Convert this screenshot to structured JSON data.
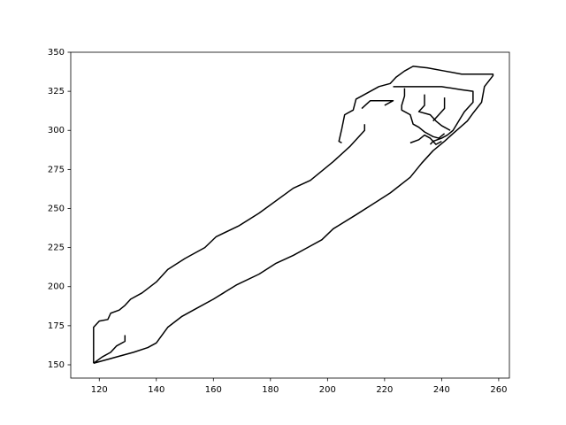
{
  "chart_data": {
    "type": "line",
    "xlim": [
      110,
      263.75
    ],
    "ylim": [
      141.5,
      350
    ],
    "xticks": [
      120,
      140,
      160,
      180,
      200,
      220,
      240,
      260
    ],
    "yticks": [
      150,
      175,
      200,
      225,
      250,
      275,
      300,
      325,
      350
    ],
    "series": [
      {
        "color": "#000000",
        "x": [
          118,
          132,
          137,
          140,
          144,
          149,
          154,
          160,
          168,
          176,
          182,
          188,
          193,
          198,
          202,
          210,
          216,
          222,
          229,
          233,
          237,
          241,
          244,
          249,
          251,
          254,
          255,
          258,
          258,
          247,
          241,
          235,
          230,
          227,
          224,
          222,
          218,
          212,
          210,
          209,
          206,
          205,
          204,
          205,
          null,
          118,
          118,
          120,
          123,
          124,
          127,
          129,
          131,
          135,
          140,
          144,
          150,
          157,
          161,
          169,
          176,
          188,
          194,
          202,
          208,
          213,
          213,
          null,
          118,
          121,
          124,
          126,
          129,
          129,
          null,
          212,
          215,
          223,
          220,
          null,
          223,
          240,
          247,
          251,
          251,
          248,
          246,
          244,
          242,
          240,
          237,
          236,
          null,
          227,
          227,
          226,
          226,
          229,
          230,
          232,
          234,
          237,
          239,
          241,
          null,
          234,
          234,
          232,
          236,
          238,
          240,
          243,
          null,
          241,
          241,
          239,
          237,
          null,
          229,
          232,
          234,
          236,
          238,
          240
        ],
        "values": [
          151,
          158,
          161,
          164,
          174,
          181,
          186,
          192,
          201,
          208,
          215,
          220,
          225,
          230,
          237,
          246,
          253,
          260,
          270,
          279,
          287,
          293,
          298,
          306,
          311,
          318,
          328,
          335,
          336,
          336,
          338,
          340,
          341,
          338,
          334,
          330,
          328,
          322,
          320,
          313,
          310,
          301,
          293,
          292,
          null,
          151,
          174,
          178,
          179,
          183,
          185,
          188,
          192,
          196,
          203,
          211,
          218,
          225,
          232,
          239,
          247,
          263,
          268,
          280,
          290,
          300,
          304,
          null,
          151,
          155,
          158,
          162,
          165,
          169,
          null,
          314,
          319,
          319,
          316,
          null,
          328,
          328,
          326,
          325,
          318,
          312,
          306,
          300,
          297,
          295,
          293,
          291,
          null,
          327,
          322,
          316,
          313,
          310,
          304,
          302,
          299,
          296,
          295,
          298,
          null,
          323,
          316,
          312,
          310,
          306,
          303,
          300,
          null,
          321,
          314,
          310,
          306,
          null,
          292,
          294,
          297,
          295,
          291,
          293
        ]
      }
    ]
  }
}
